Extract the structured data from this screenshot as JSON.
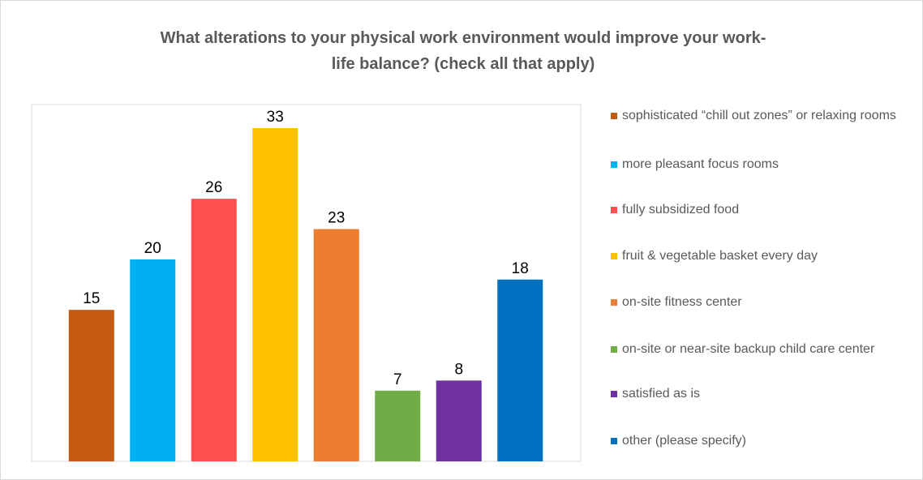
{
  "chart_data": {
    "type": "bar",
    "title": "What alterations to your physical work environment would improve your work-life balance? (check all that apply)",
    "series": [
      {
        "name": "sophisticated “chill out zones” or relaxing rooms",
        "color": "#c55a11",
        "values": [
          15
        ]
      },
      {
        "name": "more pleasant focus rooms",
        "color": "#00b0f0",
        "values": [
          20
        ]
      },
      {
        "name": "fully subsidized food",
        "color": "#ff5050",
        "values": [
          26
        ]
      },
      {
        "name": "fruit & vegetable basket every day",
        "color": "#ffc000",
        "values": [
          33
        ]
      },
      {
        "name": "on-site fitness center",
        "color": "#ed7d31",
        "values": [
          23
        ]
      },
      {
        "name": "on-site or near-site backup child care center",
        "color": "#70ad47",
        "values": [
          7
        ]
      },
      {
        "name": "satisfied as is",
        "color": "#7030a0",
        "values": [
          8
        ]
      },
      {
        "name": "other (please specify)",
        "color": "#0070c0",
        "values": [
          18
        ]
      }
    ]
  }
}
